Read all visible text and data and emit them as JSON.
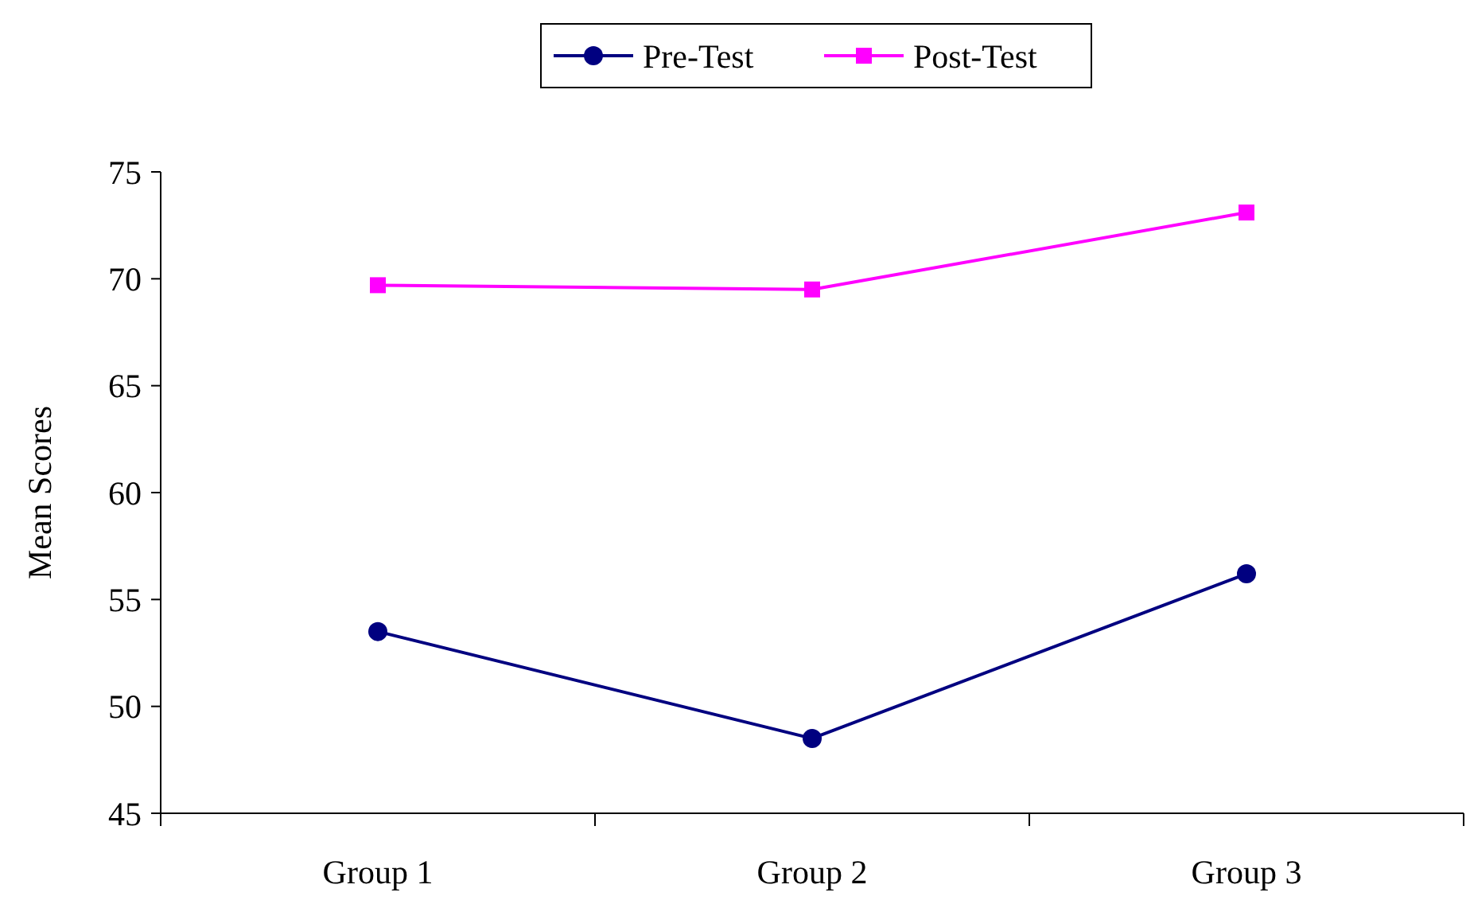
{
  "chart_data": {
    "type": "line",
    "ylabel": "Mean Scores",
    "categories": [
      "Group 1",
      "Group 2",
      "Group 3"
    ],
    "series": [
      {
        "name": "Pre-Test",
        "color": "#000080",
        "marker": "circle",
        "values": [
          53.5,
          48.5,
          56.2
        ]
      },
      {
        "name": "Post-Test",
        "color": "#ff00ff",
        "marker": "square",
        "values": [
          69.7,
          69.5,
          73.1
        ]
      }
    ],
    "ylim": [
      45,
      75
    ],
    "yticks": [
      45,
      50,
      55,
      60,
      65,
      70,
      75
    ],
    "grid": false,
    "legend": "top"
  }
}
